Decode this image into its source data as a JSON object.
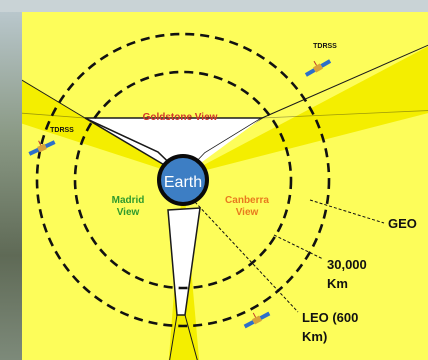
{
  "center": {
    "label": "Earth"
  },
  "views": {
    "goldstone": "Goldstone View",
    "madrid": [
      "Madrid",
      "View"
    ],
    "canberra": [
      "Canberra",
      "View"
    ]
  },
  "orbits": {
    "geo": "GEO",
    "mid": [
      "30,000",
      "Km"
    ],
    "leo": [
      "LEO (600",
      "Km)"
    ]
  },
  "satellites": [
    "TDRSS",
    "TDRSS"
  ],
  "colors": {
    "background": "#fdfd5a",
    "beam": "#f4ee00",
    "goldstone_label": "#d0392b",
    "madrid_label": "#2f9a2c",
    "canberra_label": "#e87a1e",
    "earth": "#3d7ec4"
  }
}
